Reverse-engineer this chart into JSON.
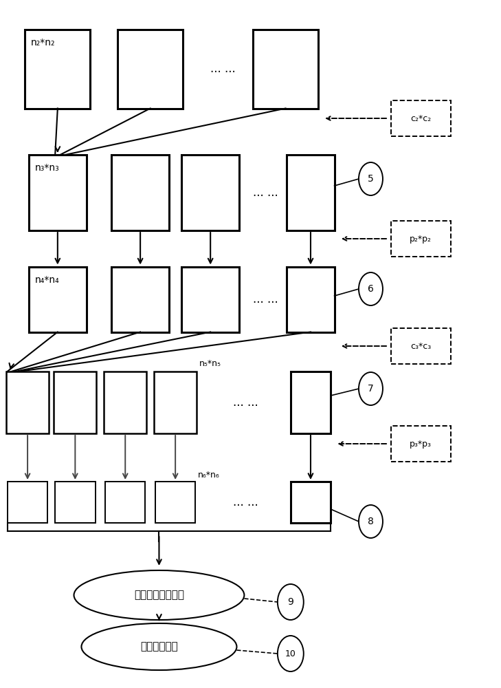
{
  "bg_color": "#ffffff",
  "fig_width": 7.29,
  "fig_height": 10.0,
  "labels": {
    "n2": "n₂*n₂",
    "n3": "n₃*n₃",
    "n4": "n₄*n₄",
    "n5": "n₅*n₅",
    "n6": "n₆*n₆",
    "c2": "c₂*c₂",
    "c3": "c₃*c₃",
    "p2": "p₂*p₂",
    "p3": "p₃*p₃",
    "dots": "... ...",
    "fc": "形成全连接网络层",
    "out": "输出计算结果"
  },
  "rows": {
    "r1y": 0.9,
    "r2y": 0.72,
    "r3y": 0.565,
    "r4y": 0.415,
    "r5y": 0.27,
    "r6y": 0.135,
    "r7y": 0.06
  }
}
